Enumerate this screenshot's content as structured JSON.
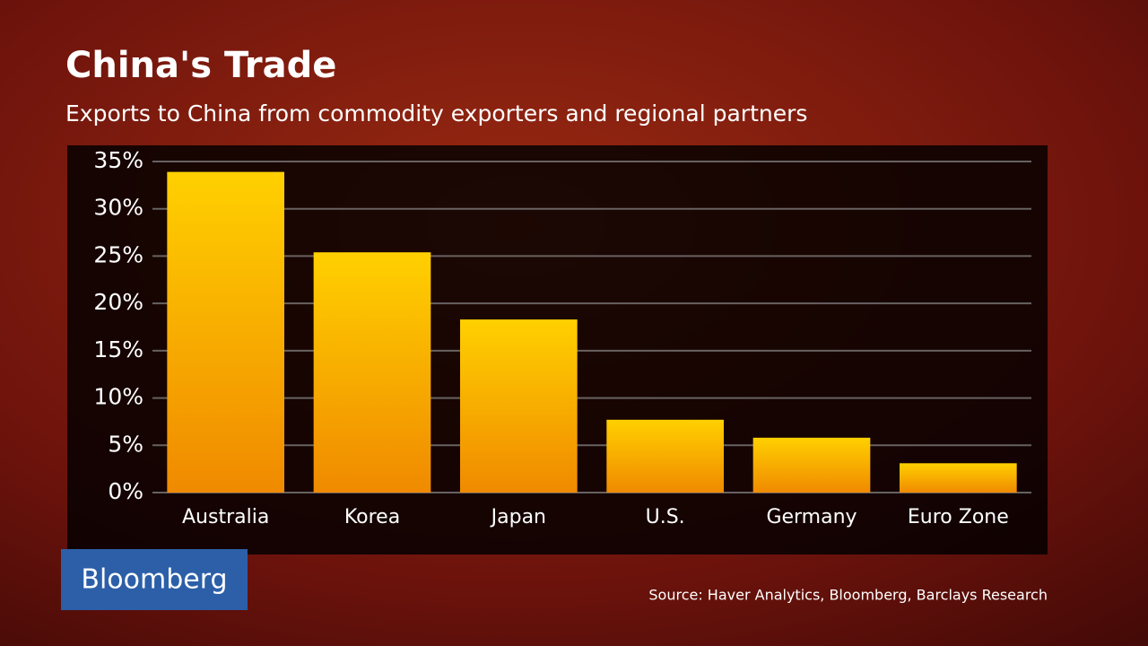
{
  "chart_data": {
    "type": "bar",
    "title": "China's Trade",
    "subtitle": "Exports to China from commodity exporters and regional partners",
    "categories": [
      "Australia",
      "Korea",
      "Japan",
      "U.S.",
      "Germany",
      "Euro Zone"
    ],
    "values": [
      33.9,
      25.4,
      18.3,
      7.7,
      5.8,
      3.1
    ],
    "color": "#ffd000",
    "ylim": [
      0,
      35
    ],
    "yticks": [
      {
        "value": 0,
        "label": "0%"
      },
      {
        "value": 5,
        "label": "5%"
      },
      {
        "value": 10,
        "label": "10%"
      },
      {
        "value": 15,
        "label": "15%"
      },
      {
        "value": 20,
        "label": "20%"
      },
      {
        "value": 25,
        "label": "25%"
      },
      {
        "value": 30,
        "label": "30%"
      },
      {
        "value": 35,
        "label": "35%"
      }
    ],
    "grid": true,
    "brand": "Bloomberg",
    "source": "Source: Haver Analytics, Bloomberg, Barclays Research"
  }
}
